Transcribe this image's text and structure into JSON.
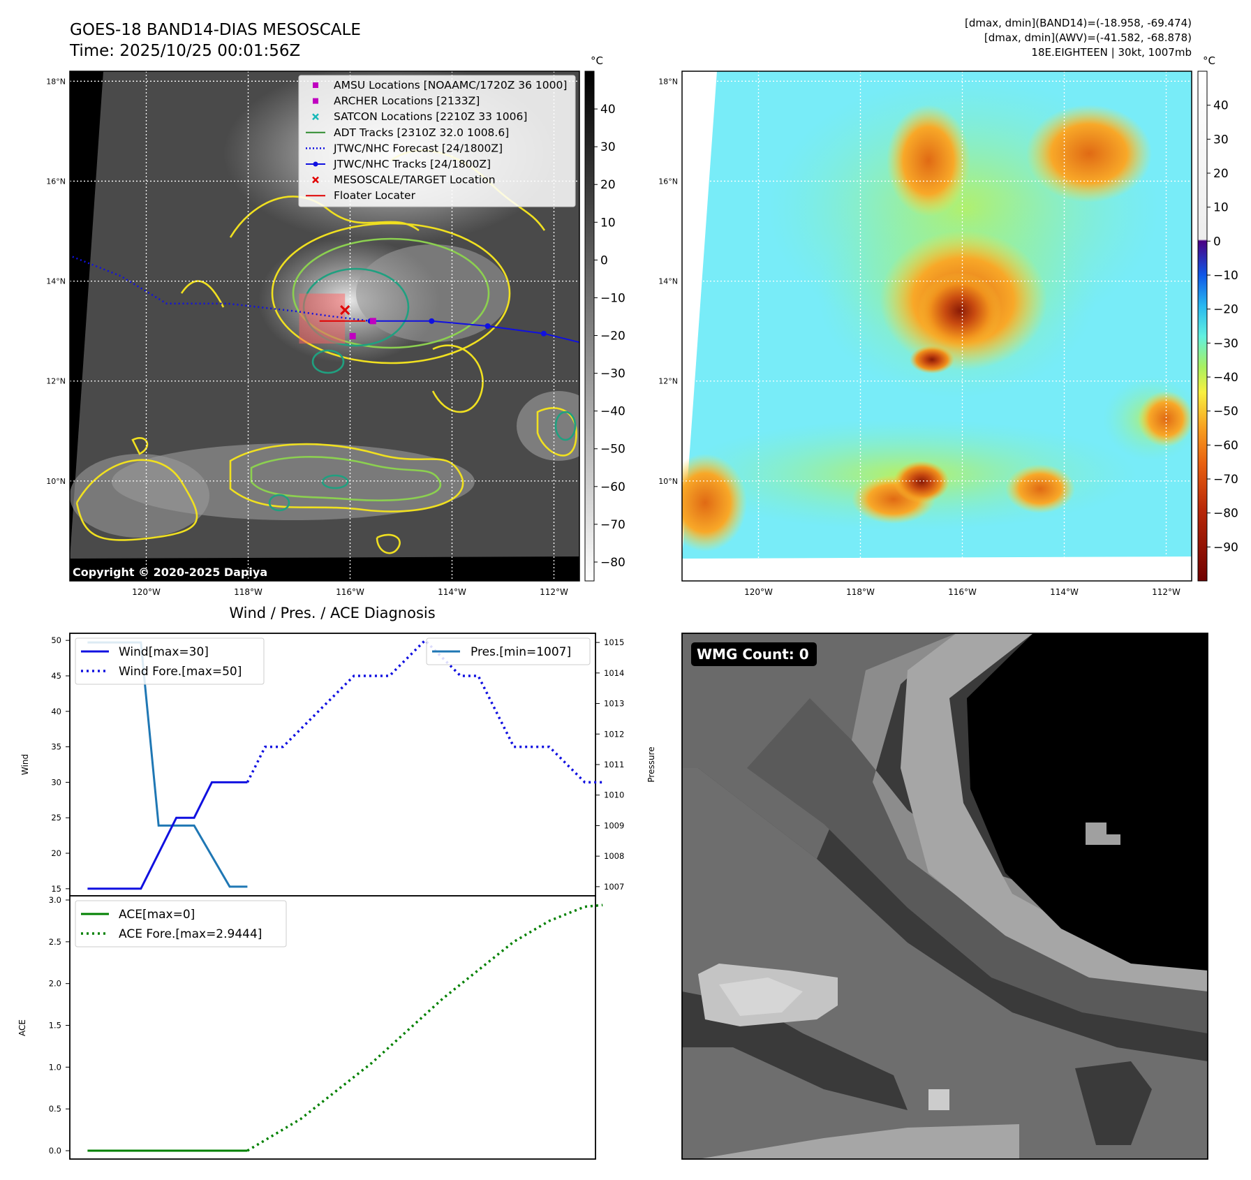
{
  "header": {
    "title": "GOES-18 BAND14-DIAS MESOSCALE",
    "time": "Time: 2025/10/25 00:01:56Z",
    "stats_band14": "[dmax, dmin](BAND14)=(-18.958, -69.474)",
    "stats_awv": "[dmax, dmin](AWV)=(-41.582, -68.878)",
    "storm_info": "18E.EIGHTEEN | 30kt, 1007mb"
  },
  "copyright": "Copyright © 2020-2025 Dapiya",
  "map_axes": {
    "lat_labels": [
      "18°N",
      "16°N",
      "14°N",
      "12°N",
      "10°N"
    ],
    "lat_values": [
      18,
      16,
      14,
      12,
      10
    ],
    "lon_labels": [
      "120°W",
      "118°W",
      "116°W",
      "114°W",
      "112°W"
    ],
    "lon_values": [
      -120,
      -118,
      -116,
      -114,
      -112
    ],
    "lon_range": [
      -121.5,
      -111.5
    ],
    "lat_range": [
      8.0,
      18.2
    ]
  },
  "legend": {
    "items": [
      {
        "label": "AMSU Locations [NOAAMC/1720Z 36 1000]",
        "marker": "square",
        "color": "#c000c0"
      },
      {
        "label": "ARCHER Locations [2133Z]",
        "marker": "square",
        "color": "#c000c0"
      },
      {
        "label": "SATCON Locations [2210Z 33 1006]",
        "marker": "x",
        "color": "#18b8b8"
      },
      {
        "label": "ADT Tracks [2310Z 32.0 1008.6]",
        "marker": "line",
        "color": "#2e8b2e"
      },
      {
        "label": "JTWC/NHC Forecast [24/1800Z]",
        "marker": "dotted",
        "color": "#1010e0"
      },
      {
        "label": "JTWC/NHC Tracks [24/1800Z]",
        "marker": "line-dot",
        "color": "#1010e0"
      },
      {
        "label": "MESOSCALE/TARGET Location",
        "marker": "x",
        "color": "#e00000"
      },
      {
        "label": "Floater Locater",
        "marker": "line",
        "color": "#e00000"
      }
    ]
  },
  "colorbar_gray": {
    "unit": "°C",
    "ticks": [
      "40",
      "30",
      "20",
      "10",
      "0",
      "−10",
      "−20",
      "−30",
      "−40",
      "−50",
      "−60",
      "−70",
      "−80"
    ],
    "tick_values": [
      40,
      30,
      20,
      10,
      0,
      -10,
      -20,
      -30,
      -40,
      -50,
      -60,
      -70,
      -80
    ],
    "range": [
      -85,
      50
    ]
  },
  "colorbar_color": {
    "unit": "°C",
    "ticks": [
      "40",
      "30",
      "20",
      "10",
      "0",
      "−10",
      "−20",
      "−30",
      "−40",
      "−50",
      "−60",
      "−70",
      "−80",
      "−90"
    ],
    "tick_values": [
      40,
      30,
      20,
      10,
      0,
      -10,
      -20,
      -30,
      -40,
      -50,
      -60,
      -70,
      -80,
      -90
    ],
    "range": [
      -100,
      50
    ]
  },
  "wmg_label": "WMG Count: 0",
  "chart_data": [
    {
      "type": "line",
      "title": "Wind / Pres. / ACE Diagnosis",
      "ylabel": "Wind",
      "y2label": "Pressure",
      "ylim": [
        14,
        51
      ],
      "y2lim": [
        1006.7,
        1015.3
      ],
      "xlim": [
        -0.5,
        14.3
      ],
      "yticks": [
        15,
        20,
        25,
        30,
        35,
        40,
        45,
        50
      ],
      "y2ticks": [
        1007,
        1008,
        1009,
        1010,
        1011,
        1012,
        1013,
        1014,
        1015
      ],
      "series": [
        {
          "name": "Wind[max=30]",
          "color": "#1010e0",
          "style": "solid",
          "x": [
            0,
            1.5,
            2.5,
            3,
            3.5,
            4.5
          ],
          "values": [
            15,
            15,
            25,
            25,
            30,
            30
          ]
        },
        {
          "name": "Wind Fore.[max=50]",
          "color": "#1010e0",
          "style": "dotted",
          "x": [
            4.5,
            5,
            5.5,
            6.5,
            7.5,
            8.5,
            9.5,
            10.5,
            11,
            12,
            13,
            14,
            14.5
          ],
          "values": [
            30,
            35,
            35,
            40,
            45,
            45,
            50,
            45,
            45,
            35,
            35,
            30,
            30
          ]
        },
        {
          "name": "Pres.[min=1007]",
          "color": "#1f77b4",
          "style": "solid",
          "axis": "right",
          "x": [
            0,
            1.5,
            2,
            3,
            4,
            4.5
          ],
          "values": [
            1015,
            1015,
            1009,
            1009,
            1007,
            1007
          ]
        }
      ]
    },
    {
      "type": "line",
      "ylabel": "ACE",
      "ylim": [
        -0.1,
        3.05
      ],
      "xlim": [
        -0.5,
        14.3
      ],
      "yticks": [
        0.0,
        0.5,
        1.0,
        1.5,
        2.0,
        2.5,
        3.0
      ],
      "series": [
        {
          "name": "ACE[max=0]",
          "color": "#008000",
          "style": "solid",
          "x": [
            0,
            4.5
          ],
          "values": [
            0,
            0
          ]
        },
        {
          "name": "ACE Fore.[max=2.9444]",
          "color": "#008000",
          "style": "dotted",
          "x": [
            4.5,
            6,
            8,
            10,
            12,
            13,
            14,
            14.5
          ],
          "values": [
            0,
            0.38,
            1.05,
            1.82,
            2.5,
            2.75,
            2.92,
            2.94
          ]
        }
      ]
    }
  ]
}
